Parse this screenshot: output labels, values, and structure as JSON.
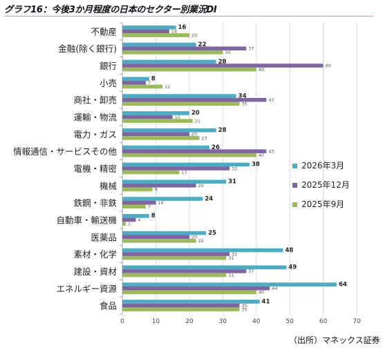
{
  "chart_data": {
    "type": "bar",
    "orientation": "horizontal",
    "title": "グラフ16：今後3か月程度の日本のセクター別業況DI",
    "categories": [
      "不動産",
      "金融(除く銀行)",
      "銀行",
      "小売",
      "商社・卸売",
      "運輸・物流",
      "電力・ガス",
      "情報通信・サービスその他",
      "電機・精密",
      "機械",
      "鉄鋼・非鉄",
      "自動車・輸送機",
      "医薬品",
      "素材・化学",
      "建設・資材",
      "エネルギー資源",
      "食品"
    ],
    "series": [
      {
        "name": "2026年3月",
        "color": "#4bacc6",
        "values": [
          16,
          22,
          28,
          8,
          34,
          20,
          28,
          26,
          38,
          31,
          24,
          8,
          25,
          48,
          49,
          64,
          41
        ]
      },
      {
        "name": "2025年12月",
        "color": "#8064a2",
        "values": [
          14,
          37,
          60,
          7,
          43,
          15,
          20,
          43,
          32,
          22,
          10,
          4,
          20,
          32,
          37,
          44,
          35
        ]
      },
      {
        "name": "2025年9月",
        "color": "#9bbb59",
        "values": [
          20,
          30,
          40,
          12,
          35,
          21,
          23,
          40,
          17,
          9,
          7,
          1,
          22,
          31,
          31,
          40,
          35
        ]
      }
    ],
    "xlim": [
      0,
      70
    ],
    "xticks": [
      0,
      10,
      20,
      30,
      40,
      50,
      60,
      70
    ],
    "grid": true,
    "legend_position": "right"
  },
  "source_note": "（出所）マネックス証券"
}
